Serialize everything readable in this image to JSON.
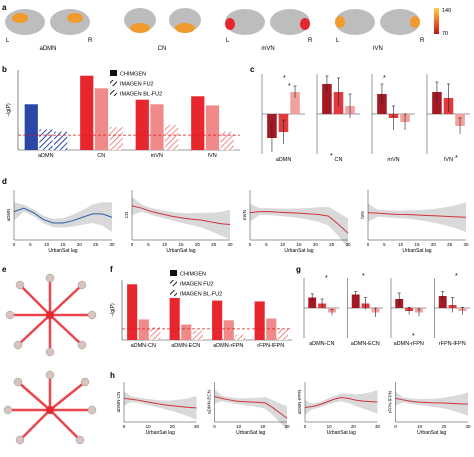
{
  "panel_letters": [
    "a",
    "b",
    "c",
    "d",
    "e",
    "f",
    "g",
    "h"
  ],
  "brain_labels": [
    "aDMN",
    "CN",
    "mVN",
    "lVN"
  ],
  "hemisphere_labels": {
    "left": "L",
    "right": "R"
  },
  "colorbar": {
    "max": "140",
    "min": "70"
  },
  "legend_b": [
    "CHIMGEN",
    "IMAGEN FU2",
    "IMAGEN BL-FU2"
  ],
  "legend_f": [
    "CHIMGEN",
    "IMAGEN FU2",
    "IMAGEN BL-FU2"
  ],
  "significance_marks": [
    "*",
    "*",
    "*",
    "*",
    "*",
    "*",
    "*",
    "*",
    "*"
  ],
  "colors": {
    "chimgen_blue": "#2a47a6",
    "chimgen_red": "#e8262e",
    "fu2_red": "#f08a8a",
    "blfu2_red": "#f4a6a6",
    "threshold": "#d7191c",
    "dark_red": "#a41a24",
    "mid_red": "#e03a3e",
    "light_red": "#f3a0a0",
    "curve_blue": "#2c5da8",
    "curve_red": "#d0323a",
    "band": "#cfcfcf",
    "brain": "#bdbdbd",
    "hot": "#f19a2d"
  },
  "chart_data": [
    {
      "panel": "b",
      "type": "bar",
      "categories": [
        "aDMN",
        "CN",
        "mVN",
        "lVN"
      ],
      "series": [
        {
          "name": "CHIMGEN",
          "values": [
            4.0,
            6.5,
            4.4,
            4.7
          ]
        },
        {
          "name": "IMAGEN FU2",
          "values": [
            1.8,
            5.4,
            4.0,
            3.9
          ]
        },
        {
          "name": "IMAGEN BL-FU2",
          "values": [
            1.6,
            2.0,
            2.2,
            1.6
          ]
        }
      ],
      "ylabel": "−lg(P)",
      "threshold": 1.3,
      "ylim": [
        0,
        7
      ]
    },
    {
      "panel": "c",
      "type": "bar",
      "subplots": [
        {
          "xlabel": "aDMN",
          "values": [
            -0.6,
            -0.45,
            0.55
          ],
          "errors": [
            0.35,
            0.3,
            0.15
          ]
        },
        {
          "xlabel": "CN",
          "values": [
            0.75,
            0.55,
            0.2
          ],
          "errors": [
            0.2,
            0.35,
            0.3
          ]
        },
        {
          "xlabel": "mVN",
          "values": [
            0.5,
            -0.1,
            -0.2
          ],
          "errors": [
            0.25,
            0.3,
            0.2
          ]
        },
        {
          "xlabel": "lVN",
          "values": [
            0.55,
            0.4,
            -0.3
          ],
          "errors": [
            0.25,
            0.35,
            0.2
          ]
        }
      ]
    },
    {
      "panel": "d",
      "type": "line",
      "xlabel": "UrbanSat lag",
      "x_ticks": [
        "0",
        "5",
        "10",
        "15",
        "20",
        "25",
        "30"
      ],
      "x": [
        0,
        3,
        6,
        9,
        12,
        15,
        18,
        21,
        24,
        27,
        30
      ],
      "series": [
        {
          "name": "aDMN",
          "values": [
            0.15,
            0.3,
            0.1,
            -0.2,
            -0.35,
            -0.35,
            -0.25,
            -0.1,
            0.05,
            0.05,
            -0.1
          ]
        },
        {
          "name": "CN",
          "values": [
            0.4,
            0.3,
            0.15,
            0.05,
            -0.05,
            -0.12,
            -0.18,
            -0.22,
            -0.3,
            -0.38,
            -0.42
          ]
        },
        {
          "name": "mVN",
          "values": [
            0.1,
            0.15,
            0.15,
            0.12,
            0.1,
            0.08,
            0.05,
            0.02,
            -0.05,
            -0.4,
            -0.8
          ]
        },
        {
          "name": "lVN",
          "values": [
            0.1,
            0.08,
            0.05,
            0.03,
            0.02,
            0.0,
            -0.02,
            -0.04,
            -0.06,
            -0.08,
            -0.1
          ]
        }
      ]
    },
    {
      "panel": "f",
      "type": "bar",
      "categories": [
        "aDMN-CN",
        "aDMN-ECN",
        "aDMN-rFPN",
        "rFPN-lFPN"
      ],
      "series": [
        {
          "name": "CHIMGEN",
          "values": [
            6.5,
            4.9,
            4.6,
            4.5
          ]
        },
        {
          "name": "IMAGEN FU2",
          "values": [
            2.4,
            1.8,
            2.3,
            2.5
          ]
        },
        {
          "name": "IMAGEN BL-FU2",
          "values": [
            1.5,
            1.1,
            0.6,
            1.3
          ]
        }
      ],
      "ylabel": "−lg(P)",
      "threshold": 1.3,
      "ylim": [
        0,
        7
      ]
    },
    {
      "panel": "g",
      "type": "bar",
      "subplots": [
        {
          "xlabel": "aDMN-CN",
          "values": [
            0.35,
            0.15,
            -0.15
          ],
          "errors": [
            0.12,
            0.15,
            0.1
          ]
        },
        {
          "xlabel": "aDMN-ECN",
          "values": [
            0.45,
            0.15,
            -0.15
          ],
          "errors": [
            0.1,
            0.2,
            0.15
          ]
        },
        {
          "xlabel": "aDMN-rFPN",
          "values": [
            0.3,
            -0.1,
            -0.15
          ],
          "errors": [
            0.2,
            0.12,
            0.12
          ]
        },
        {
          "xlabel": "rFPN-lFPN",
          "values": [
            0.4,
            0.1,
            -0.1
          ],
          "errors": [
            0.15,
            0.25,
            0.12
          ]
        }
      ]
    },
    {
      "panel": "h",
      "type": "line",
      "xlabel": "UrbanSat lag",
      "x_ticks": [
        "0",
        "10",
        "20",
        "30"
      ],
      "x": [
        0,
        3,
        6,
        9,
        12,
        15,
        18,
        21,
        24,
        27,
        30
      ],
      "series": [
        {
          "name": "aDMN-CN",
          "values": [
            0.2,
            0.15,
            0.1,
            0.02,
            -0.05,
            -0.12,
            -0.18,
            -0.22,
            -0.26,
            -0.3,
            -0.32
          ]
        },
        {
          "name": "aDMN-ECN",
          "values": [
            0.3,
            0.2,
            0.12,
            0.05,
            0.02,
            0.0,
            -0.02,
            -0.05,
            -0.3,
            -0.6,
            -0.9
          ]
        },
        {
          "name": "aDMN-rFPN",
          "values": [
            -0.3,
            -0.25,
            -0.15,
            0.0,
            0.15,
            0.25,
            0.2,
            0.1,
            0.05,
            0.02,
            0.0
          ]
        },
        {
          "name": "rFPN-lFPN",
          "values": [
            0.2,
            0.12,
            0.05,
            0.0,
            -0.02,
            -0.04,
            -0.05,
            -0.06,
            -0.08,
            -0.1,
            -0.12
          ]
        }
      ]
    }
  ]
}
